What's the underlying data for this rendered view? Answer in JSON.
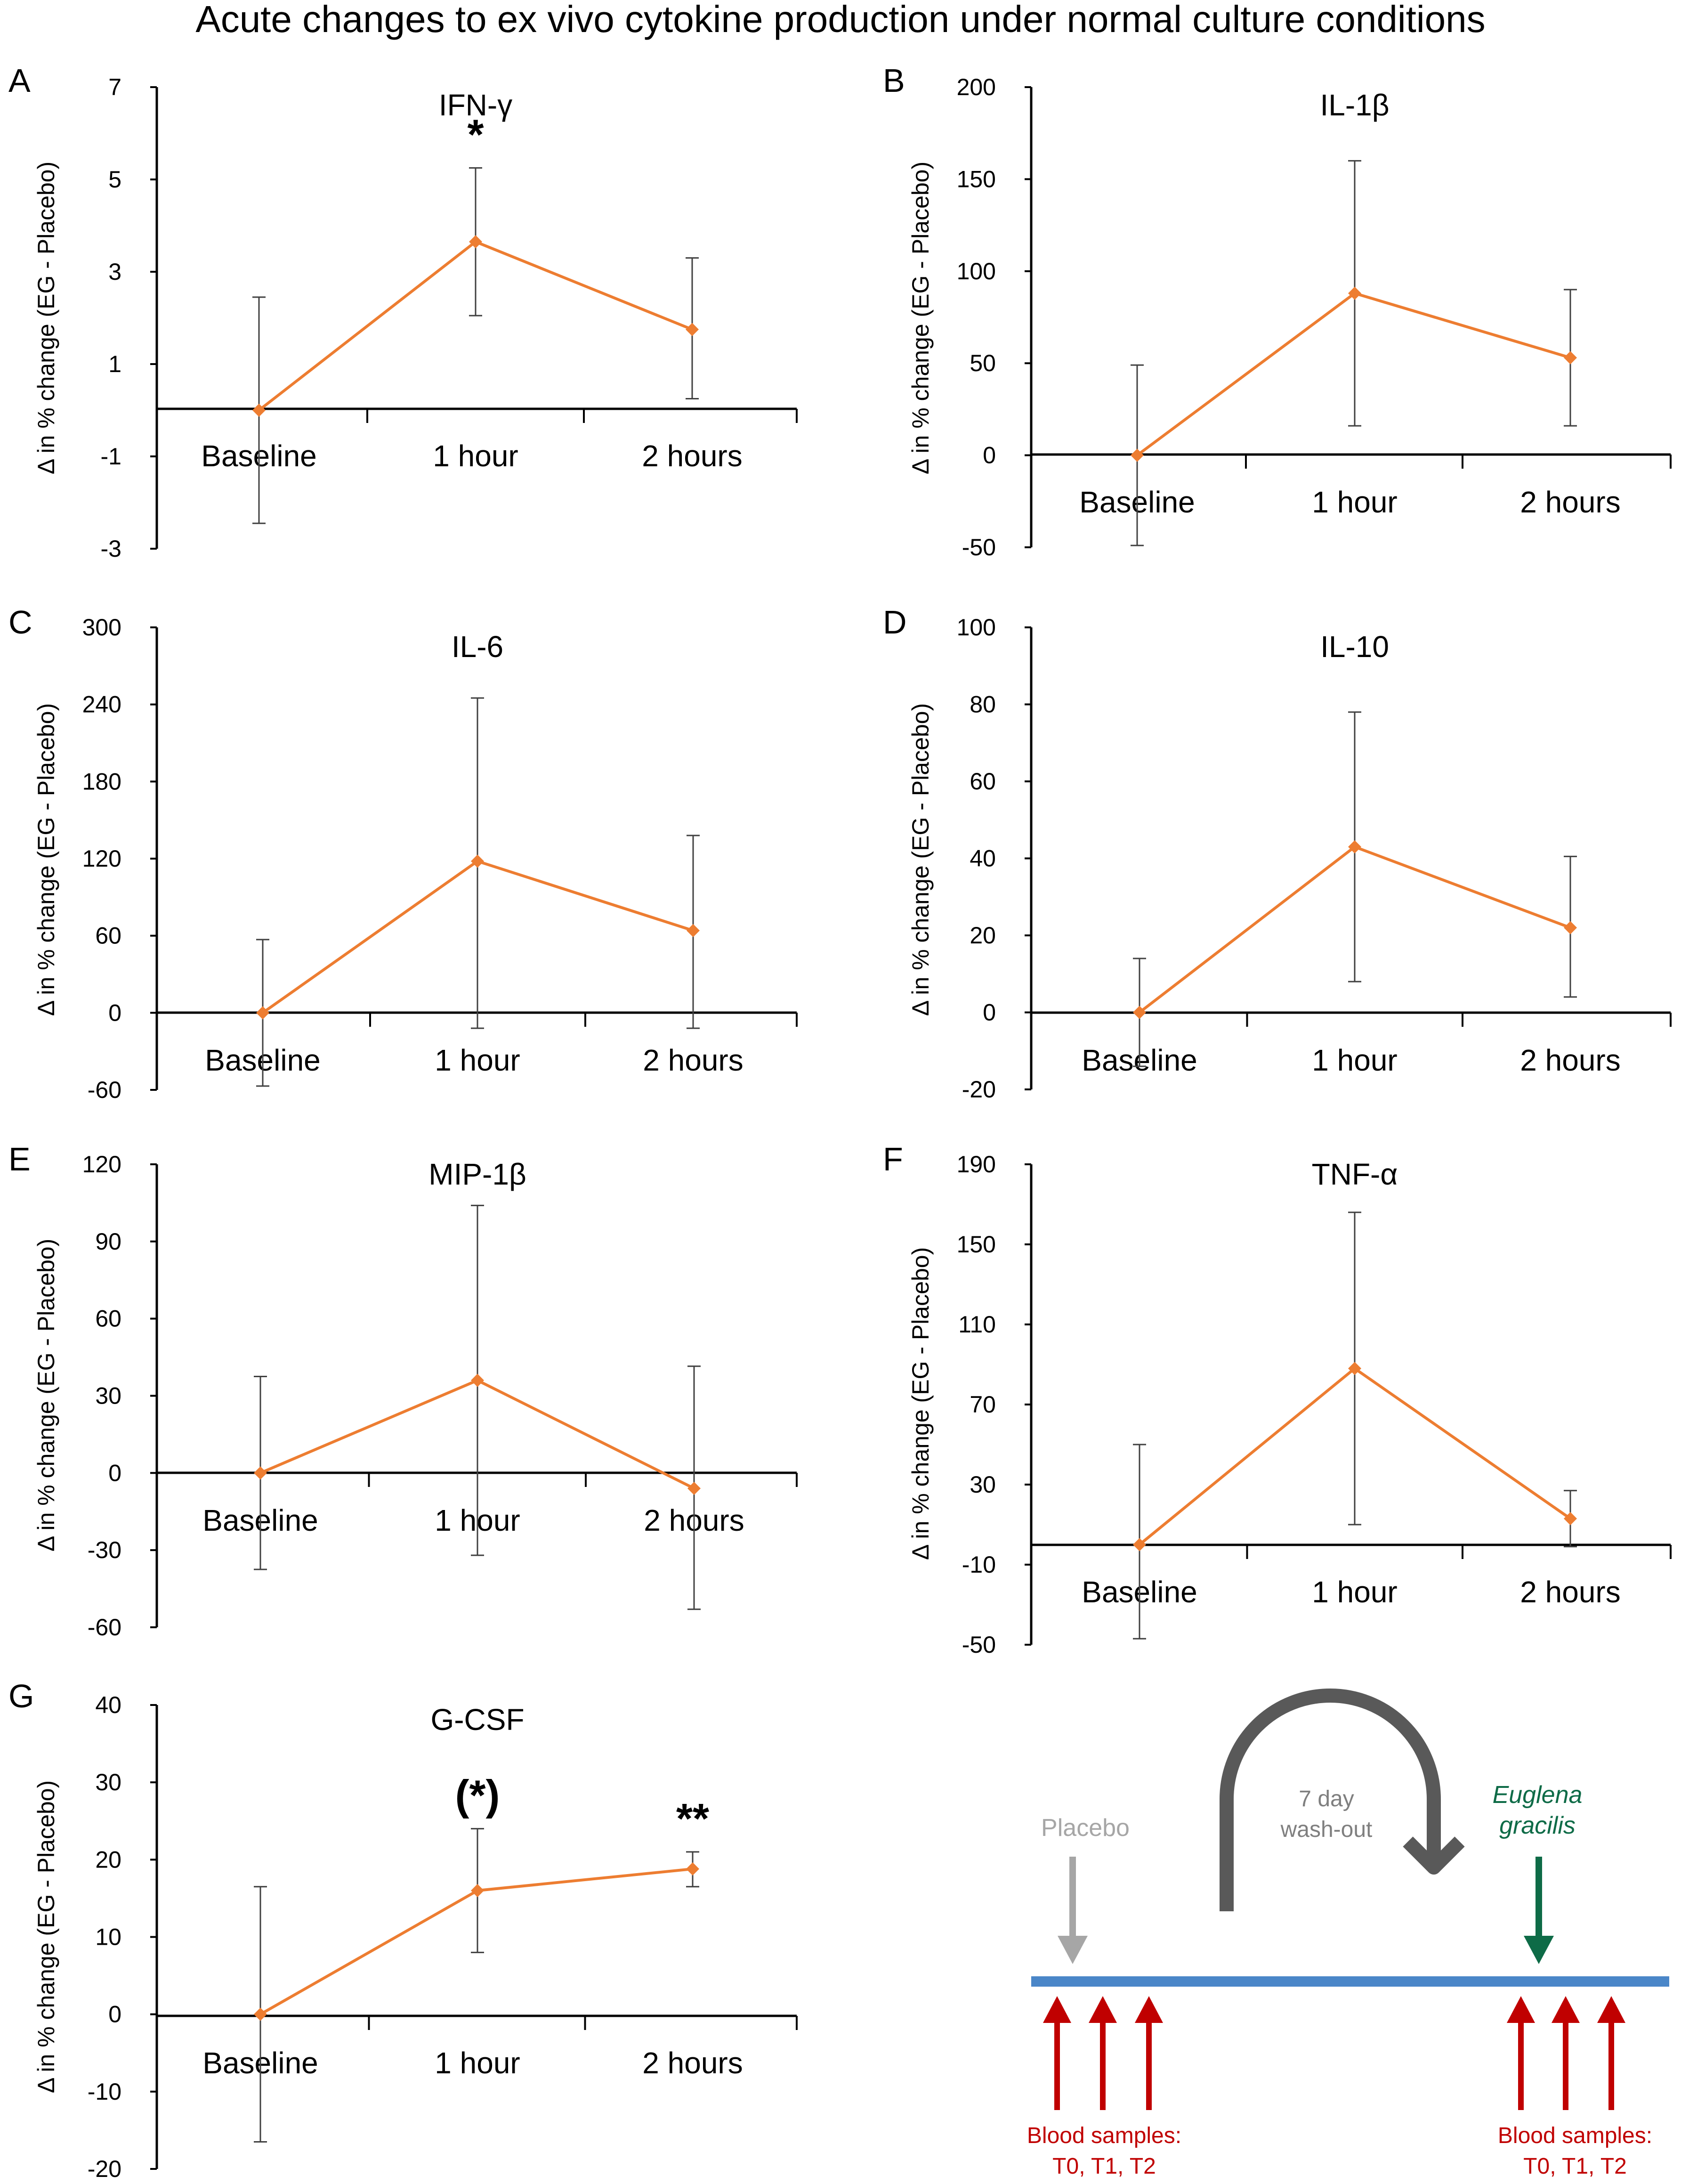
{
  "figure_title": "Acute changes to ex vivo cytokine production under normal culture conditions",
  "y_label": "Δ in % change (EG - Placebo)",
  "colors": {
    "series": "#ed7d31",
    "axis": "#000000",
    "errorbar": "#404040",
    "timeline": "#4a86c8",
    "arrow_red": "#c00000",
    "arrow_gray": "#a6a6a6",
    "arrow_green": "#0e6b47",
    "loop_arrow": "#595959"
  },
  "chart_data": [
    {
      "panel": "A",
      "type": "line",
      "title": "IFN-γ",
      "categories": [
        "Baseline",
        "1 hour",
        "2 hours"
      ],
      "values": [
        0,
        3.65,
        1.75
      ],
      "err_upper": [
        2.45,
        5.25,
        3.3
      ],
      "err_lower": [
        -2.45,
        2.05,
        0.25
      ],
      "ylim": [
        -3,
        7
      ],
      "yticks": [
        "7",
        "5",
        "3",
        "1",
        "-1",
        "-3"
      ],
      "significance": [
        "",
        "*",
        ""
      ]
    },
    {
      "panel": "B",
      "type": "line",
      "title": "IL-1β",
      "categories": [
        "Baseline",
        "1 hour",
        "2 hours"
      ],
      "values": [
        0,
        88,
        53
      ],
      "err_upper": [
        49,
        160,
        90
      ],
      "err_lower": [
        -49,
        16,
        16
      ],
      "ylim": [
        -50,
        200
      ],
      "yticks": [
        "200",
        "150",
        "100",
        "50",
        "0",
        "-50"
      ],
      "significance": [
        "",
        "",
        ""
      ]
    },
    {
      "panel": "C",
      "type": "line",
      "title": "IL-6",
      "categories": [
        "Baseline",
        "1 hour",
        "2 hours"
      ],
      "values": [
        0,
        118,
        64
      ],
      "err_upper": [
        57,
        245,
        138
      ],
      "err_lower": [
        -57,
        -12,
        -12
      ],
      "ylim": [
        -60,
        300
      ],
      "yticks": [
        "300",
        "240",
        "180",
        "120",
        "60",
        "0",
        "-60"
      ],
      "significance": [
        "",
        "",
        ""
      ]
    },
    {
      "panel": "D",
      "type": "line",
      "title": "IL-10",
      "categories": [
        "Baseline",
        "1 hour",
        "2 hours"
      ],
      "values": [
        0,
        43,
        22
      ],
      "err_upper": [
        14,
        78,
        40.5
      ],
      "err_lower": [
        -14,
        8,
        4
      ],
      "ylim": [
        -20,
        100
      ],
      "yticks": [
        "100",
        "80",
        "60",
        "40",
        "20",
        "0",
        "-20"
      ],
      "significance": [
        "",
        "",
        ""
      ]
    },
    {
      "panel": "E",
      "type": "line",
      "title": "MIP-1β",
      "categories": [
        "Baseline",
        "1 hour",
        "2 hours"
      ],
      "values": [
        0,
        36,
        -6
      ],
      "err_upper": [
        37.5,
        104,
        41.5
      ],
      "err_lower": [
        -37.5,
        -32,
        -53
      ],
      "ylim": [
        -60,
        120
      ],
      "yticks": [
        "120",
        "90",
        "60",
        "30",
        "0",
        "-30",
        "-60"
      ],
      "significance": [
        "",
        "",
        ""
      ]
    },
    {
      "panel": "F",
      "type": "line",
      "title": "TNF-α",
      "categories": [
        "Baseline",
        "1 hour",
        "2 hours"
      ],
      "values": [
        0,
        88,
        13
      ],
      "err_upper": [
        50,
        166,
        27
      ],
      "err_lower": [
        -47,
        10,
        -1
      ],
      "ylim": [
        -50,
        190
      ],
      "yticks": [
        "190",
        "150",
        "110",
        "70",
        "30",
        "-10",
        "-50"
      ],
      "significance": [
        "",
        "",
        ""
      ]
    },
    {
      "panel": "G",
      "type": "line",
      "title": "G-CSF",
      "categories": [
        "Baseline",
        "1 hour",
        "2 hours"
      ],
      "values": [
        0,
        16,
        18.8
      ],
      "err_upper": [
        16.5,
        24,
        21
      ],
      "err_lower": [
        -16.5,
        8,
        16.5
      ],
      "ylim": [
        -20,
        40
      ],
      "yticks": [
        "40",
        "30",
        "20",
        "10",
        "0",
        "-10",
        "-20"
      ],
      "significance": [
        "",
        "(*)",
        "**"
      ]
    }
  ],
  "diagram": {
    "placebo": "Placebo",
    "washout_line1": "7 day",
    "washout_line2": "wash-out",
    "eg_line1": "Euglena",
    "eg_line2": "gracilis",
    "blood_line1": "Blood samples:",
    "blood_line2": "T0, T1, T2"
  }
}
